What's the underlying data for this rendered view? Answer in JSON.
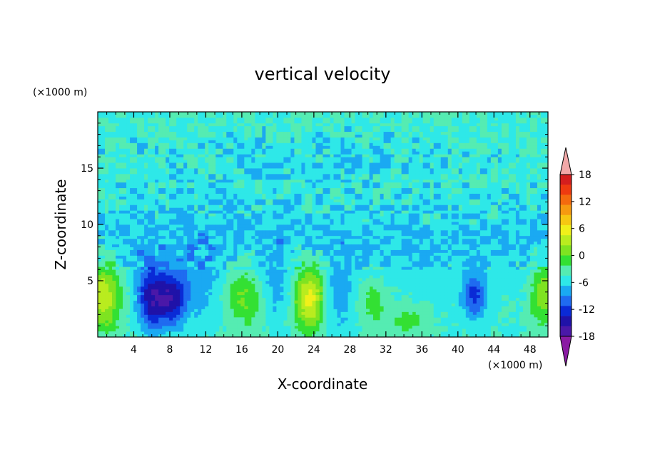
{
  "chart_data": {
    "type": "contour",
    "title": "vertical velocity",
    "xlabel": "X-coordinate",
    "ylabel": "Z-coordinate",
    "x_unit": "(×1000 m)",
    "y_unit": "(×1000 m)",
    "xlim": [
      0,
      50
    ],
    "ylim": [
      0,
      20
    ],
    "xticks": [
      4,
      8,
      12,
      16,
      20,
      24,
      28,
      32,
      36,
      40,
      44,
      48
    ],
    "yticks": [
      5,
      10,
      15
    ],
    "grid": false,
    "colorbar": {
      "orientation": "vertical",
      "placement": "right",
      "min": -21,
      "max": 21,
      "step": 3,
      "tick_labels": [
        "18",
        "12",
        "6",
        "0",
        "-6",
        "-12",
        "-18"
      ],
      "tick_values": [
        18,
        12,
        6,
        0,
        -6,
        -12,
        -18
      ],
      "colors": [
        "#8a1ba3",
        "#4a18a8",
        "#1f12a8",
        "#0a2ad6",
        "#1f6bf0",
        "#1aa9f2",
        "#2ee8e8",
        "#55ecb2",
        "#33e033",
        "#7fe321",
        "#b9ec1f",
        "#f0f01a",
        "#f6c812",
        "#f69a10",
        "#f46a0e",
        "#ee3a10",
        "#d41e1e",
        "#f2a8a8"
      ]
    },
    "features": [
      {
        "kind": "updraft",
        "x": 0.6,
        "z": 3.8,
        "peak": 12,
        "sx": 1.4,
        "sz": 2.2
      },
      {
        "kind": "updraft",
        "x": 16.5,
        "z": 3.7,
        "peak": 7,
        "sx": 1.8,
        "sz": 2.0
      },
      {
        "kind": "updraft",
        "x": 23.6,
        "z": 3.6,
        "peak": 14,
        "sx": 1.3,
        "sz": 2.1
      },
      {
        "kind": "updraft",
        "x": 30.5,
        "z": 3.2,
        "peak": 5,
        "sx": 1.2,
        "sz": 1.6
      },
      {
        "kind": "updraft",
        "x": 34.5,
        "z": 1.4,
        "peak": 4,
        "sx": 1.5,
        "sz": 0.9
      },
      {
        "kind": "updraft",
        "x": 49.5,
        "z": 4.0,
        "peak": 9,
        "sx": 1.0,
        "sz": 2.0
      },
      {
        "kind": "downdraft",
        "x": 6.0,
        "z": 3.4,
        "peak": -14,
        "sx": 1.1,
        "sz": 1.9
      },
      {
        "kind": "downdraft",
        "x": 8.3,
        "z": 3.3,
        "peak": -12,
        "sx": 1.0,
        "sz": 1.6
      },
      {
        "kind": "downdraft",
        "x": 41.8,
        "z": 3.6,
        "peak": -10,
        "sx": 0.9,
        "sz": 1.4
      },
      {
        "kind": "downdraft",
        "x": 19.5,
        "z": 4.0,
        "peak": -5,
        "sx": 1.3,
        "sz": 2.2
      },
      {
        "kind": "downdraft",
        "x": 26.5,
        "z": 3.4,
        "peak": -5,
        "sx": 1.4,
        "sz": 2.2
      },
      {
        "kind": "downdraft",
        "x": 11.0,
        "z": 4.5,
        "peak": -4,
        "sx": 2.0,
        "sz": 2.5
      }
    ]
  }
}
